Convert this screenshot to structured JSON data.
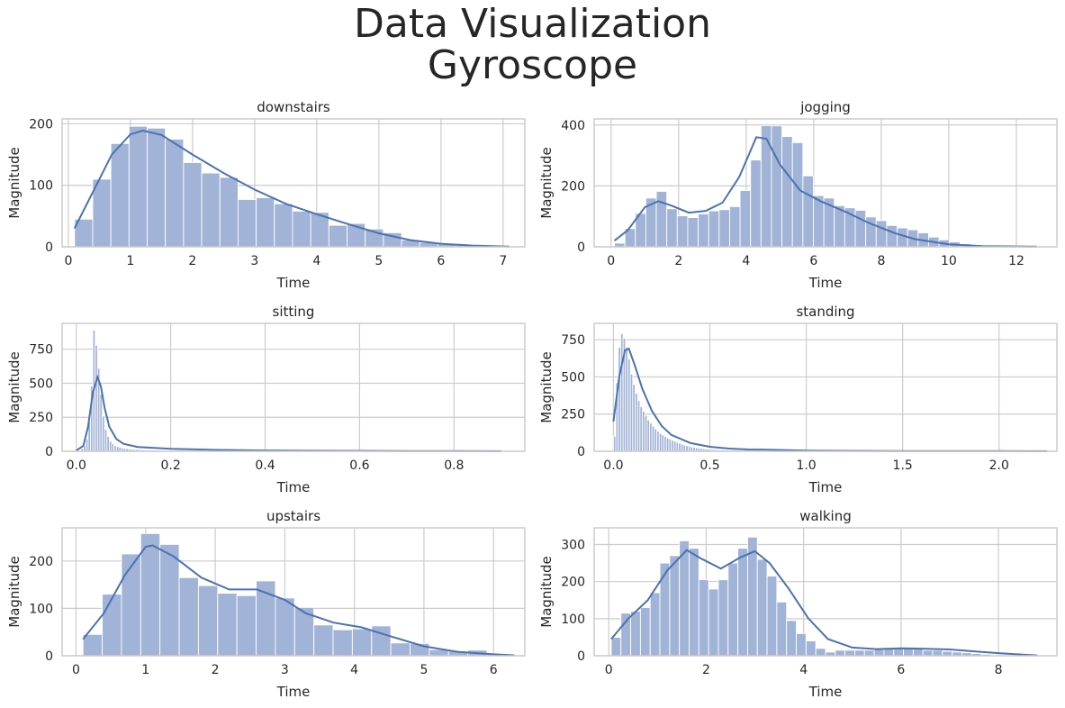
{
  "figure": {
    "title_line1": "Data Visualization",
    "title_line2": "Gyroscope"
  },
  "colors": {
    "bar": "#a1b3d6",
    "kde": "#4c72b0",
    "grid": "#cccccc"
  },
  "chart_data": [
    {
      "type": "bar",
      "title": "downstairs",
      "xlabel": "Time",
      "ylabel": "Magnitude",
      "xlim": [
        -0.1,
        7.35
      ],
      "ylim": [
        0,
        208
      ],
      "xticks": [
        0,
        1,
        2,
        3,
        4,
        5,
        6,
        7
      ],
      "yticks": [
        0,
        100,
        200
      ],
      "bin_start": 0.1,
      "bin_width": 0.2925,
      "values": [
        45,
        110,
        168,
        196,
        193,
        175,
        137,
        120,
        113,
        77,
        80,
        70,
        58,
        56,
        35,
        38,
        29,
        23,
        11,
        7,
        5,
        3,
        2,
        1
      ],
      "kde": [
        [
          0.1,
          30
        ],
        [
          0.4,
          90
        ],
        [
          0.7,
          150
        ],
        [
          1.0,
          183
        ],
        [
          1.2,
          189
        ],
        [
          1.5,
          182
        ],
        [
          2.0,
          150
        ],
        [
          2.5,
          120
        ],
        [
          3.0,
          93
        ],
        [
          3.5,
          70
        ],
        [
          4.0,
          53
        ],
        [
          4.5,
          37
        ],
        [
          5.0,
          22
        ],
        [
          5.5,
          11
        ],
        [
          6.0,
          5
        ],
        [
          6.5,
          2
        ],
        [
          7.1,
          0.5
        ]
      ]
    },
    {
      "type": "bar",
      "title": "jogging",
      "xlabel": "Time",
      "ylabel": "Magnitude",
      "xlim": [
        -0.5,
        13.2
      ],
      "ylim": [
        0,
        420
      ],
      "xticks": [
        0,
        2,
        4,
        6,
        8,
        10,
        12
      ],
      "yticks": [
        0,
        200,
        400
      ],
      "bin_start": 0.1,
      "bin_width": 0.31,
      "values": [
        12,
        60,
        110,
        160,
        182,
        125,
        102,
        96,
        108,
        118,
        122,
        132,
        185,
        285,
        398,
        397,
        362,
        342,
        233,
        168,
        160,
        135,
        128,
        120,
        98,
        86,
        70,
        62,
        56,
        46,
        32,
        23,
        16,
        10,
        6,
        4,
        3,
        2,
        2,
        1
      ],
      "kde": [
        [
          0.1,
          20
        ],
        [
          0.5,
          55
        ],
        [
          1.0,
          130
        ],
        [
          1.4,
          150
        ],
        [
          1.8,
          135
        ],
        [
          2.3,
          112
        ],
        [
          2.8,
          118
        ],
        [
          3.3,
          145
        ],
        [
          3.8,
          230
        ],
        [
          4.3,
          360
        ],
        [
          4.6,
          355
        ],
        [
          5.0,
          270
        ],
        [
          5.6,
          185
        ],
        [
          6.2,
          150
        ],
        [
          7.0,
          112
        ],
        [
          7.6,
          80
        ],
        [
          8.4,
          45
        ],
        [
          9.0,
          25
        ],
        [
          10.0,
          8
        ],
        [
          11.0,
          2
        ],
        [
          12.6,
          0.5
        ]
      ]
    },
    {
      "type": "bar",
      "title": "sitting",
      "xlabel": "Time",
      "ylabel": "Magnitude",
      "xlim": [
        -0.03,
        0.95
      ],
      "ylim": [
        0,
        940
      ],
      "xticks": [
        0.0,
        0.2,
        0.4,
        0.6,
        0.8
      ],
      "yticks": [
        0,
        250,
        500,
        750
      ],
      "tick_labels": [
        "0.0",
        "0.2",
        "0.4",
        "0.6",
        "0.8"
      ],
      "bin_start": 0.005,
      "bin_width": 0.005,
      "values": [
        5,
        20,
        40,
        90,
        220,
        480,
        890,
        780,
        610,
        420,
        260,
        160,
        110,
        75,
        55,
        42,
        35,
        30,
        25,
        22,
        20,
        18,
        16,
        15,
        14,
        13,
        12,
        11,
        10,
        10,
        9,
        9,
        8,
        8,
        7,
        7,
        6,
        6,
        6,
        5,
        5,
        5,
        5,
        4,
        4,
        4,
        4,
        4,
        3,
        3,
        3,
        3,
        3,
        3,
        3,
        3,
        3,
        2,
        2,
        2,
        2,
        2,
        2,
        2,
        2,
        2,
        2,
        2,
        2,
        2,
        2,
        2,
        2,
        2,
        2,
        2,
        2,
        2,
        2,
        2,
        2,
        2,
        2,
        1,
        1,
        1,
        1,
        1,
        1,
        1,
        1,
        1,
        1,
        1,
        1,
        1,
        1,
        1,
        1,
        1,
        1,
        1,
        1,
        1,
        1,
        1,
        1,
        1,
        1,
        1,
        1,
        1,
        1,
        1,
        1,
        1,
        1,
        1,
        1,
        1,
        1,
        1,
        1,
        1,
        1,
        1,
        1,
        1,
        1,
        1,
        1,
        1,
        1,
        1,
        1,
        1,
        1,
        1,
        1,
        1,
        1,
        1,
        1,
        1,
        1,
        1,
        1,
        1,
        1,
        1,
        1,
        1,
        1,
        1,
        1,
        1,
        1,
        1,
        1,
        1,
        1,
        1,
        1,
        1,
        1,
        1,
        1,
        1,
        1,
        1,
        1,
        1,
        1,
        1,
        1,
        1,
        1,
        1,
        1,
        1
      ],
      "kde": [
        [
          0.0,
          5
        ],
        [
          0.015,
          40
        ],
        [
          0.025,
          180
        ],
        [
          0.035,
          430
        ],
        [
          0.045,
          545
        ],
        [
          0.052,
          480
        ],
        [
          0.06,
          320
        ],
        [
          0.07,
          180
        ],
        [
          0.085,
          90
        ],
        [
          0.1,
          55
        ],
        [
          0.13,
          32
        ],
        [
          0.2,
          18
        ],
        [
          0.3,
          10
        ],
        [
          0.4,
          6
        ],
        [
          0.5,
          4
        ],
        [
          0.6,
          3
        ],
        [
          0.7,
          2
        ],
        [
          0.8,
          1
        ],
        [
          0.9,
          0.5
        ]
      ]
    },
    {
      "type": "bar",
      "title": "standing",
      "xlabel": "Time",
      "ylabel": "Magnitude",
      "xlim": [
        -0.1,
        2.3
      ],
      "ylim": [
        0,
        860
      ],
      "xticks": [
        0.0,
        0.5,
        1.0,
        1.5,
        2.0
      ],
      "yticks": [
        0,
        250,
        500,
        750
      ],
      "tick_labels": [
        "0.0",
        "0.5",
        "1.0",
        "1.5",
        "2.0"
      ],
      "bin_start": 0.0,
      "bin_width": 0.0125,
      "values": [
        100,
        460,
        700,
        790,
        760,
        700,
        620,
        520,
        450,
        390,
        340,
        300,
        270,
        240,
        210,
        190,
        170,
        150,
        135,
        120,
        110,
        100,
        90,
        82,
        75,
        68,
        60,
        54,
        48,
        43,
        38,
        34,
        30,
        27,
        24,
        22,
        20,
        18,
        16,
        14,
        13,
        12,
        11,
        10,
        9,
        9,
        8,
        8,
        7,
        7,
        6,
        6,
        6,
        5,
        5,
        5,
        5,
        4,
        4,
        4,
        4,
        4,
        3,
        3,
        3,
        3,
        3,
        3,
        3,
        2,
        2,
        2,
        2,
        2,
        2,
        2,
        2,
        2,
        2,
        2,
        2,
        2,
        2,
        2,
        2,
        2,
        1,
        1,
        1,
        1,
        1,
        1,
        1,
        1,
        1,
        1,
        1,
        1,
        1,
        1,
        1,
        1,
        1,
        1,
        1,
        1,
        1,
        1,
        1,
        1,
        1,
        1,
        1,
        1,
        1,
        1,
        1,
        1,
        1,
        1
      ],
      "kde": [
        [
          0.0,
          200
        ],
        [
          0.03,
          500
        ],
        [
          0.06,
          680
        ],
        [
          0.08,
          690
        ],
        [
          0.11,
          580
        ],
        [
          0.15,
          420
        ],
        [
          0.2,
          270
        ],
        [
          0.25,
          170
        ],
        [
          0.3,
          110
        ],
        [
          0.4,
          55
        ],
        [
          0.5,
          30
        ],
        [
          0.6,
          18
        ],
        [
          0.7,
          12
        ],
        [
          0.8,
          10
        ],
        [
          1.0,
          5
        ],
        [
          1.2,
          3
        ],
        [
          1.5,
          2
        ],
        [
          2.0,
          1
        ],
        [
          2.25,
          0.5
        ]
      ]
    },
    {
      "type": "bar",
      "title": "upstairs",
      "xlabel": "Time",
      "ylabel": "Magnitude",
      "xlim": [
        -0.2,
        6.45
      ],
      "ylim": [
        0,
        270
      ],
      "xticks": [
        0,
        1,
        2,
        3,
        4,
        5,
        6
      ],
      "yticks": [
        0,
        100,
        200
      ],
      "bin_start": 0.1,
      "bin_width": 0.2765,
      "values": [
        45,
        130,
        215,
        258,
        235,
        165,
        148,
        132,
        127,
        158,
        122,
        102,
        65,
        55,
        57,
        63,
        27,
        26,
        13,
        10,
        12,
        4
      ],
      "kde": [
        [
          0.1,
          35
        ],
        [
          0.4,
          90
        ],
        [
          0.7,
          170
        ],
        [
          1.0,
          230
        ],
        [
          1.1,
          233
        ],
        [
          1.4,
          210
        ],
        [
          1.8,
          165
        ],
        [
          2.2,
          140
        ],
        [
          2.6,
          140
        ],
        [
          3.0,
          118
        ],
        [
          3.3,
          90
        ],
        [
          3.7,
          70
        ],
        [
          4.1,
          60
        ],
        [
          4.5,
          42
        ],
        [
          5.0,
          20
        ],
        [
          5.5,
          8
        ],
        [
          6.0,
          3
        ],
        [
          6.3,
          1
        ]
      ]
    },
    {
      "type": "bar",
      "title": "walking",
      "xlabel": "Time",
      "ylabel": "Magnitude",
      "xlim": [
        -0.3,
        9.2
      ],
      "ylim": [
        0,
        345
      ],
      "xticks": [
        0,
        2,
        4,
        6,
        8
      ],
      "yticks": [
        0,
        100,
        200,
        300
      ],
      "bin_start": 0.05,
      "bin_width": 0.2,
      "values": [
        50,
        115,
        120,
        130,
        170,
        250,
        270,
        310,
        290,
        205,
        180,
        205,
        250,
        290,
        320,
        260,
        215,
        145,
        95,
        60,
        40,
        20,
        10,
        15,
        15,
        15,
        15,
        20,
        20,
        20,
        20,
        18,
        15,
        15,
        12,
        10,
        8,
        6,
        4,
        2,
        2,
        1,
        1,
        1
      ],
      "kde": [
        [
          0.05,
          45
        ],
        [
          0.4,
          100
        ],
        [
          0.8,
          150
        ],
        [
          1.2,
          230
        ],
        [
          1.6,
          285
        ],
        [
          1.9,
          262
        ],
        [
          2.3,
          235
        ],
        [
          2.7,
          265
        ],
        [
          3.0,
          282
        ],
        [
          3.3,
          250
        ],
        [
          3.7,
          180
        ],
        [
          4.1,
          100
        ],
        [
          4.5,
          45
        ],
        [
          5.0,
          22
        ],
        [
          5.5,
          18
        ],
        [
          6.0,
          20
        ],
        [
          6.5,
          19
        ],
        [
          7.0,
          17
        ],
        [
          7.5,
          12
        ],
        [
          8.0,
          7
        ],
        [
          8.5,
          3
        ],
        [
          8.8,
          1
        ]
      ]
    }
  ]
}
